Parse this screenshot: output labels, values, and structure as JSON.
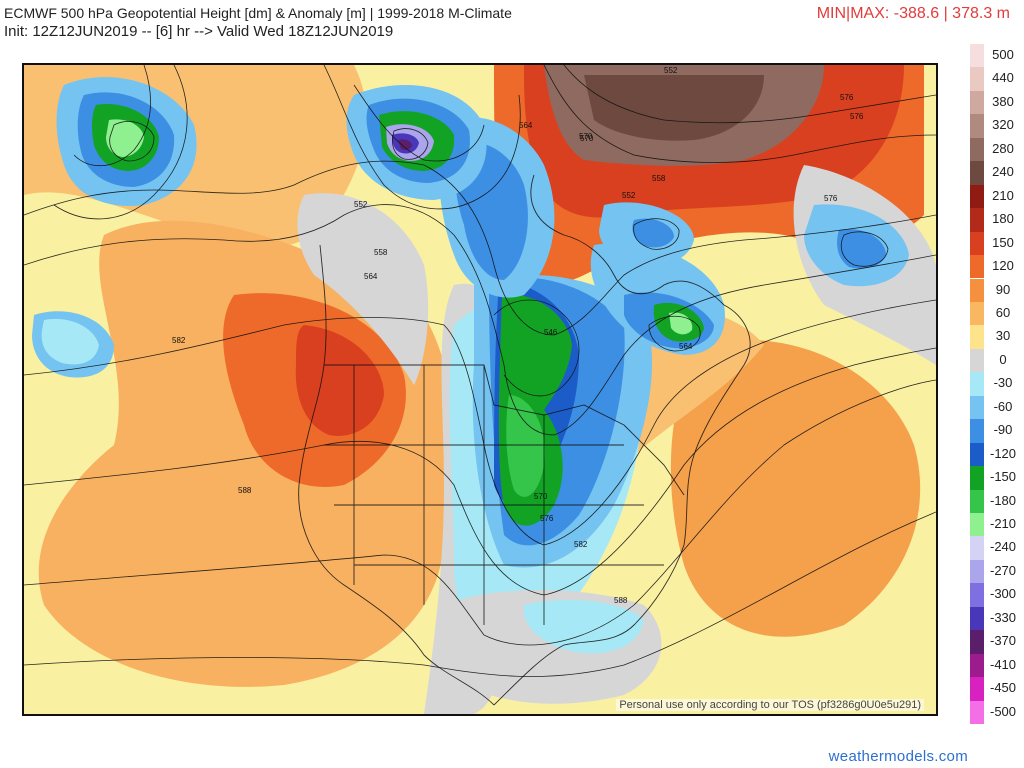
{
  "header": {
    "title_line1": "ECMWF 500 hPa Geopotential Height [dm] & Anomaly [m] | 1999-2018 M-Climate",
    "title_line2": "Init: 12Z12JUN2019 -- [6] hr --> Valid Wed 18Z12JUN2019",
    "minmax": "MIN|MAX: -388.6 | 378.3 m"
  },
  "map": {
    "disclaimer": "Personal use only according to our TOS (pf3286g0U0e5u291)",
    "contour_labels": [
      "552",
      "552",
      "558",
      "564",
      "582",
      "588",
      "546",
      "570",
      "576",
      "582",
      "588",
      "564",
      "570",
      "552",
      "558",
      "576",
      "576",
      "576",
      "564",
      "570"
    ]
  },
  "legend": {
    "entries": [
      {
        "label": "500",
        "color": "#f7dede"
      },
      {
        "label": "440",
        "color": "#e9c9c2"
      },
      {
        "label": "380",
        "color": "#cfa99f"
      },
      {
        "label": "320",
        "color": "#b08a7f"
      },
      {
        "label": "280",
        "color": "#8f6a60"
      },
      {
        "label": "240",
        "color": "#6e4940"
      },
      {
        "label": "210",
        "color": "#8f1b12"
      },
      {
        "label": "180",
        "color": "#b22a1a"
      },
      {
        "label": "150",
        "color": "#d9401f"
      },
      {
        "label": "120",
        "color": "#ee6a2a"
      },
      {
        "label": "90",
        "color": "#f5913e"
      },
      {
        "label": "60",
        "color": "#f9b762"
      },
      {
        "label": "30",
        "color": "#fde48c"
      },
      {
        "label": "0",
        "color": "#d6d6d6"
      },
      {
        "label": "-30",
        "color": "#a6e8f5"
      },
      {
        "label": "-60",
        "color": "#74c3f1"
      },
      {
        "label": "-90",
        "color": "#3d8fe3"
      },
      {
        "label": "-120",
        "color": "#1c5cc9"
      },
      {
        "label": "-150",
        "color": "#12a325"
      },
      {
        "label": "-180",
        "color": "#35c54a"
      },
      {
        "label": "-210",
        "color": "#8ef08f"
      },
      {
        "label": "-240",
        "color": "#d4d2f5"
      },
      {
        "label": "-270",
        "color": "#aba5ec"
      },
      {
        "label": "-300",
        "color": "#7f6fe0"
      },
      {
        "label": "-330",
        "color": "#4a36b8"
      },
      {
        "label": "-370",
        "color": "#5b1e6a"
      },
      {
        "label": "-410",
        "color": "#9c1c8d"
      },
      {
        "label": "-450",
        "color": "#d822c0"
      },
      {
        "label": "-500",
        "color": "#f46fe5"
      }
    ]
  },
  "footer": {
    "brand": "weathermodels.com"
  }
}
